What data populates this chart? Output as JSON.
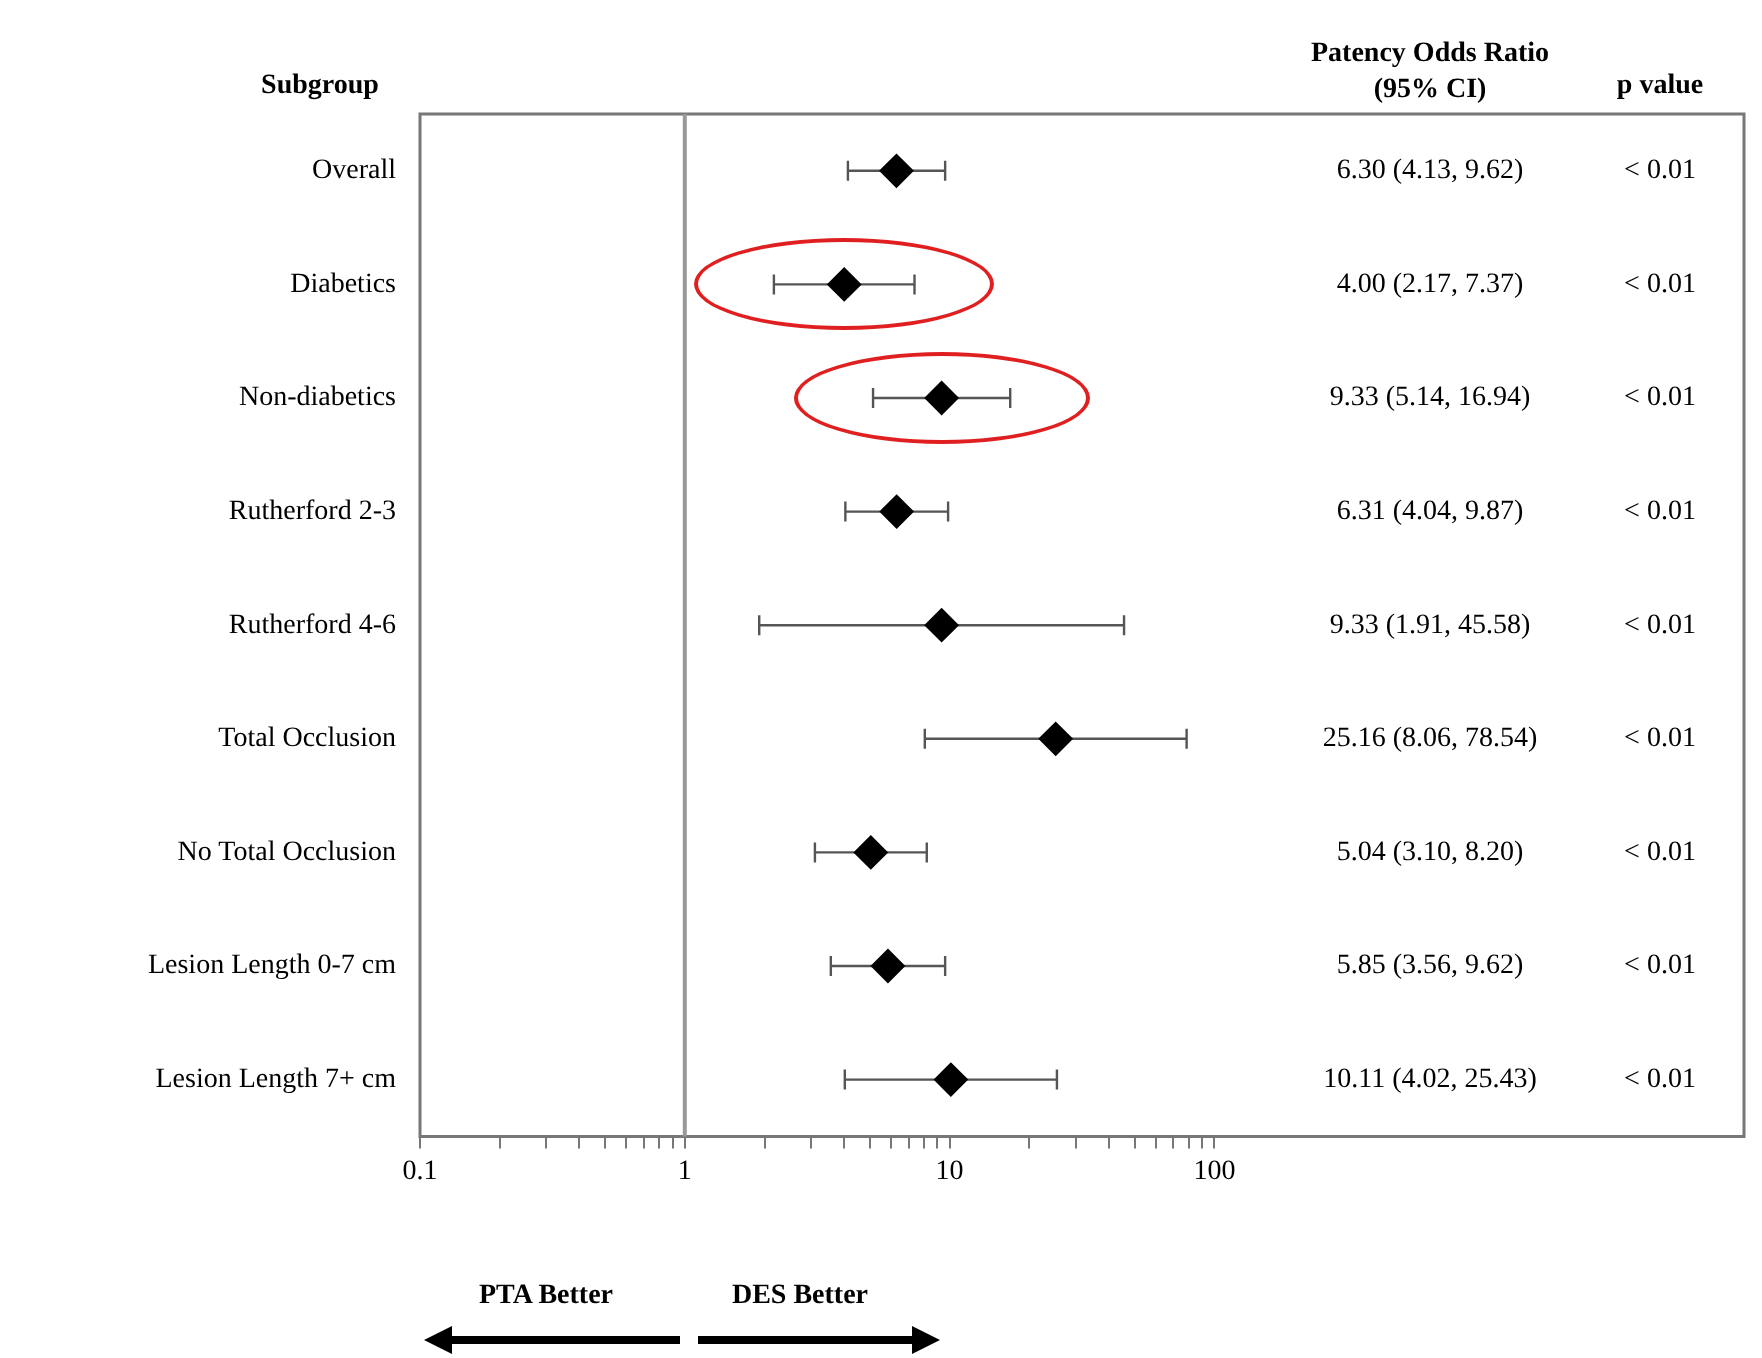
{
  "chart_data": {
    "type": "scatter",
    "orientation": "horizontal",
    "log": "x",
    "marker": "diamond",
    "grid": false,
    "legend": false,
    "categories": [
      "Overall",
      "Diabetics",
      "Non-diabetics",
      "Rutherford 2-3",
      "Rutherford 4-6",
      "Total Occlusion",
      "No Total Occlusion",
      "Lesion Length 0-7 cm",
      "Lesion Length 7+ cm"
    ],
    "values": [
      6.3,
      4.0,
      9.33,
      6.31,
      9.33,
      25.16,
      5.04,
      5.85,
      10.11
    ],
    "errors": [
      [
        4.13,
        9.62
      ],
      [
        2.17,
        7.37
      ],
      [
        5.14,
        16.94
      ],
      [
        4.04,
        9.87
      ],
      [
        1.91,
        45.58
      ],
      [
        8.06,
        78.54
      ],
      [
        3.1,
        8.2
      ],
      [
        3.56,
        9.62
      ],
      [
        4.02,
        25.43
      ]
    ],
    "color": "#000000",
    "xlim": [
      0.1,
      10000
    ],
    "xticks": [
      0.1,
      {
        "value": 0.2,
        "label": null
      },
      {
        "value": 0.3,
        "label": null
      },
      {
        "value": 0.4,
        "label": null
      },
      {
        "value": 0.5,
        "label": null
      },
      {
        "value": 0.6,
        "label": null
      },
      {
        "value": 0.7,
        "label": null
      },
      {
        "value": 0.8,
        "label": null
      },
      {
        "value": 0.9,
        "label": null
      },
      1,
      {
        "value": 2,
        "label": null
      },
      {
        "value": 3,
        "label": null
      },
      {
        "value": 4,
        "label": null
      },
      {
        "value": 5,
        "label": null
      },
      {
        "value": 6,
        "label": null
      },
      {
        "value": 7,
        "label": null
      },
      {
        "value": 8,
        "label": null
      },
      {
        "value": 9,
        "label": null
      },
      10,
      {
        "value": 20,
        "label": null
      },
      {
        "value": 30,
        "label": null
      },
      {
        "value": 40,
        "label": null
      },
      {
        "value": 50,
        "label": null
      },
      {
        "value": 60,
        "label": null
      },
      {
        "value": 70,
        "label": null
      },
      {
        "value": 80,
        "label": null
      },
      {
        "value": 90,
        "label": null
      },
      100
    ],
    "ref_lines": [
      {
        "axis": "x",
        "value": 1,
        "color": "#999999"
      }
    ],
    "annotations": [
      "Subgroup",
      "Patency Odds Ratio\n(95% CI)",
      "p value",
      "PTA Better",
      "DES Better",
      "6.30 (4.13, 9.62)",
      "< 0.01",
      "4.00 (2.17, 7.37)",
      "< 0.01",
      "9.33 (5.14, 16.94)",
      "< 0.01",
      "6.31 (4.04, 9.87)",
      "< 0.01",
      "9.33 (1.91, 45.58)",
      "< 0.01",
      "25.16 (8.06, 78.54)",
      "< 0.01",
      "5.04 (3.10, 8.20)",
      "< 0.01",
      "5.85 (3.56, 9.62)",
      "< 0.01",
      "10.11 (4.02, 25.43)",
      "< 0.01"
    ]
  }
}
